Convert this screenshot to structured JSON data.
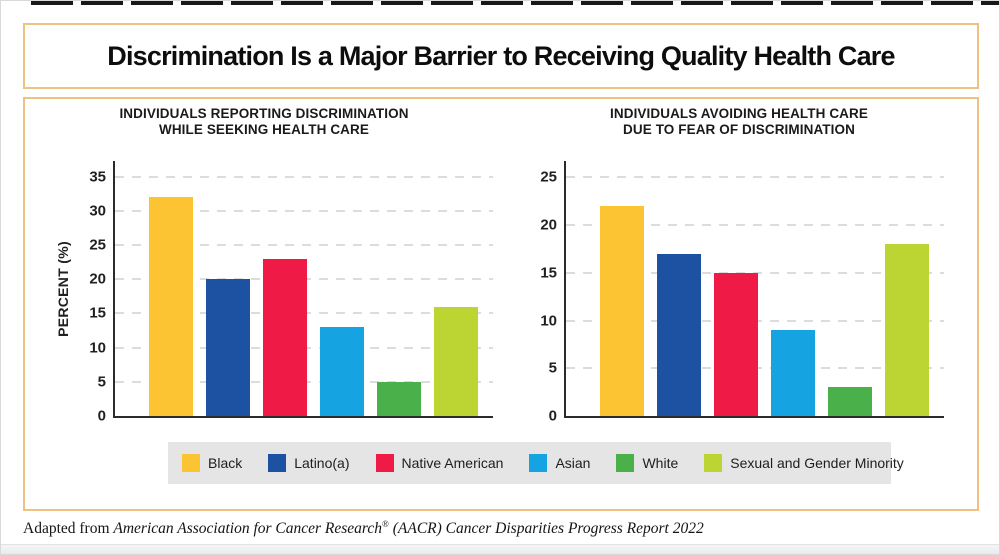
{
  "page": {
    "title": "Discrimination Is a Major Barrier to Receiving Quality Health Care",
    "footer": {
      "prefix": "Adapted from ",
      "source_italic": "American Association for Cancer Research",
      "registered_mark": "®",
      "rest_italic": " (AACR) Cancer Disparities Progress Report 2022"
    }
  },
  "colors": {
    "accent_border": "#efc183",
    "axis": "#2b2b2b",
    "gridline": "#dcdcdc",
    "legend_background": "#e5e5e6"
  },
  "legend": {
    "items": [
      {
        "label": "Black",
        "color": "#FCC433"
      },
      {
        "label": "Latino(a)",
        "color": "#1D52A3"
      },
      {
        "label": "Native American",
        "color": "#EF1A45"
      },
      {
        "label": "Asian",
        "color": "#15A3E2"
      },
      {
        "label": "White",
        "color": "#4AB04A"
      },
      {
        "label": "Sexual and Gender Minority",
        "color": "#BCD532"
      }
    ]
  },
  "chart_data": [
    {
      "type": "bar",
      "title_lines": [
        "INDIVIDUALS REPORTING DISCRIMINATION",
        "WHILE SEEKING HEALTH CARE"
      ],
      "ylabel": "PERCENT (%)",
      "categories": [
        "Black",
        "Latino(a)",
        "Native American",
        "Asian",
        "White",
        "Sexual and Gender Minority"
      ],
      "values": [
        32,
        20,
        23,
        13,
        5,
        16
      ],
      "yticks": [
        0,
        5,
        10,
        15,
        20,
        25,
        30,
        35
      ],
      "ylim": [
        0,
        37.3
      ],
      "grid": "dashed-horizontal",
      "legend_position": "bottom-shared"
    },
    {
      "type": "bar",
      "title_lines": [
        "INDIVIDUALS AVOIDING HEALTH CARE",
        "DUE TO FEAR OF DISCRIMINATION"
      ],
      "ylabel": "",
      "categories": [
        "Black",
        "Latino(a)",
        "Native American",
        "Asian",
        "White",
        "Sexual and Gender Minority"
      ],
      "values": [
        22,
        17,
        15,
        9,
        3,
        18
      ],
      "yticks": [
        0,
        5,
        10,
        15,
        20,
        25
      ],
      "ylim": [
        0,
        26.7
      ],
      "grid": "dashed-horizontal",
      "legend_position": "bottom-shared"
    }
  ]
}
